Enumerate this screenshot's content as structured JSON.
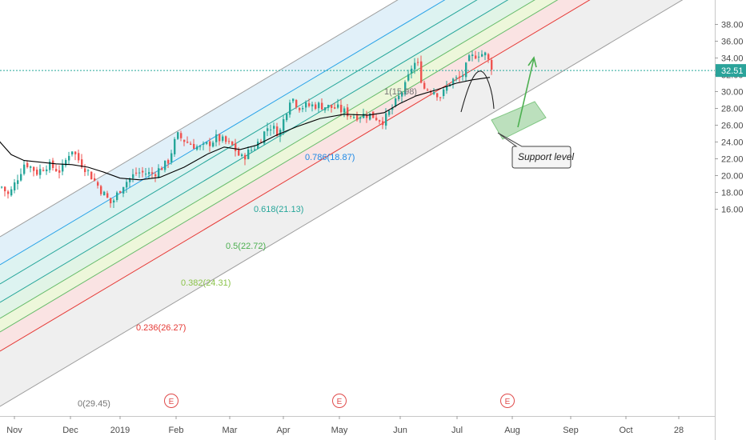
{
  "chart_data": {
    "type": "candlestick",
    "title": "",
    "xlabel": "",
    "ylabel": "",
    "ylim": [
      14.6,
      39.5
    ],
    "x_tick_labels": [
      "Nov",
      "Dec",
      "2019",
      "Feb",
      "Mar",
      "Apr",
      "May",
      "Jun",
      "Jul",
      "Aug",
      "Sep",
      "Oct",
      "28"
    ],
    "y_tick_values": [
      16.0,
      18.0,
      20.0,
      22.0,
      24.0,
      26.0,
      28.0,
      30.0,
      32.0,
      34.0,
      36.0,
      38.0
    ],
    "y_tick_labels": [
      "16.00",
      "18.00",
      "20.00",
      "22.00",
      "24.00",
      "26.00",
      "28.00",
      "30.00",
      "32.00",
      "34.00",
      "36.00",
      "38.00"
    ],
    "last_price": 32.51,
    "last_price_label": "32.51",
    "moving_average_points": [
      [
        -30,
        26.9
      ],
      [
        -12,
        26.3
      ],
      [
        0,
        24.0
      ],
      [
        14,
        22.5
      ],
      [
        30,
        21.8
      ],
      [
        50,
        21.6
      ],
      [
        70,
        21.4
      ],
      [
        90,
        21.3
      ],
      [
        110,
        21.0
      ],
      [
        130,
        20.4
      ],
      [
        150,
        19.7
      ],
      [
        175,
        19.5
      ],
      [
        200,
        19.8
      ],
      [
        230,
        21.0
      ],
      [
        260,
        22.6
      ],
      [
        280,
        23.4
      ],
      [
        300,
        23.1
      ],
      [
        320,
        23.6
      ],
      [
        345,
        24.8
      ],
      [
        370,
        25.8
      ],
      [
        400,
        26.8
      ],
      [
        430,
        27.3
      ],
      [
        460,
        27.2
      ],
      [
        480,
        27.5
      ],
      [
        500,
        28.6
      ],
      [
        520,
        29.5
      ],
      [
        545,
        30.2
      ],
      [
        570,
        31.0
      ],
      [
        590,
        31.4
      ],
      [
        605,
        31.6
      ],
      [
        612,
        31.7
      ]
    ],
    "fib_channel": {
      "levels": [
        {
          "level": "0",
          "value": 29.45,
          "label": "0(29.45)"
        },
        {
          "level": "0.236",
          "value": 26.27,
          "label": "0.236(26.27)"
        },
        {
          "level": "0.382",
          "value": 24.31,
          "label": "0.382(24.31)"
        },
        {
          "level": "0.5",
          "value": 22.72,
          "label": "0.5(22.72)"
        },
        {
          "level": "0.618",
          "value": 21.13,
          "label": "0.618(21.13)"
        },
        {
          "level": "0.786",
          "value": 18.87,
          "label": "0.786(18.87)"
        },
        {
          "level": "1",
          "value": 15.98,
          "label": "1(15.98)"
        }
      ],
      "colors": {
        "line_gray": "#9e9e9e",
        "line_red": "#e53935",
        "line_green": "#66bb6a",
        "line_teal": "#26a69a",
        "line_blue": "#29a3e8",
        "fill_gray": "#ececec",
        "fill_red": "#f9dede",
        "fill_lightgreen": "#eaf6d3",
        "fill_green": "#dcf2e2",
        "fill_teal": "#d7f1ee",
        "fill_blue": "#dcedf8"
      }
    },
    "annotations": [
      {
        "type": "callout",
        "text": "Support level"
      },
      {
        "type": "arrow",
        "direction": "up",
        "color": "#4caf50"
      },
      {
        "type": "arc",
        "color": "#222222"
      },
      {
        "type": "highlight_zone",
        "color": "#a5d6a7"
      }
    ],
    "earnings_markers": [
      "E",
      "E",
      "E"
    ],
    "colors": {
      "up": "#26a69a",
      "down": "#ef5350",
      "ma_line": "#000000",
      "price_line": "#26a69a",
      "price_tag": "#2aa39a"
    }
  }
}
